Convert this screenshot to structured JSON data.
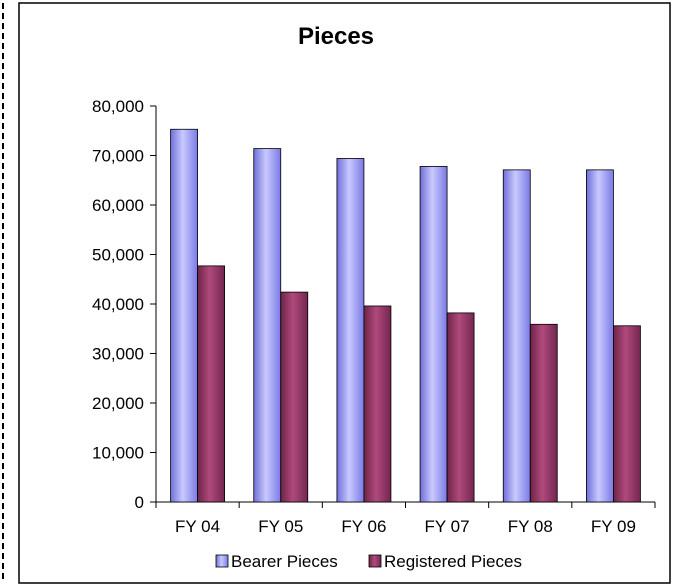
{
  "chart_data": {
    "type": "bar",
    "title": "Pieces",
    "xlabel": "",
    "ylabel": "",
    "categories": [
      "FY 04",
      "FY 05",
      "FY 06",
      "FY 07",
      "FY 08",
      "FY 09"
    ],
    "ylim": [
      0,
      80000
    ],
    "yticks": [
      0,
      10000,
      20000,
      30000,
      40000,
      50000,
      60000,
      70000,
      80000
    ],
    "ytick_labels": [
      "0",
      "10,000",
      "20,000",
      "30,000",
      "40,000",
      "50,000",
      "60,000",
      "70,000",
      "80,000"
    ],
    "grid": false,
    "legend_position": "bottom",
    "series": [
      {
        "name": "Bearer Pieces",
        "color": "#9999ff",
        "values": [
          75300,
          71400,
          69400,
          67800,
          67100,
          67100
        ]
      },
      {
        "name": "Registered Pieces",
        "color": "#993366",
        "values": [
          47700,
          42400,
          39600,
          38200,
          35900,
          35600
        ]
      }
    ]
  }
}
